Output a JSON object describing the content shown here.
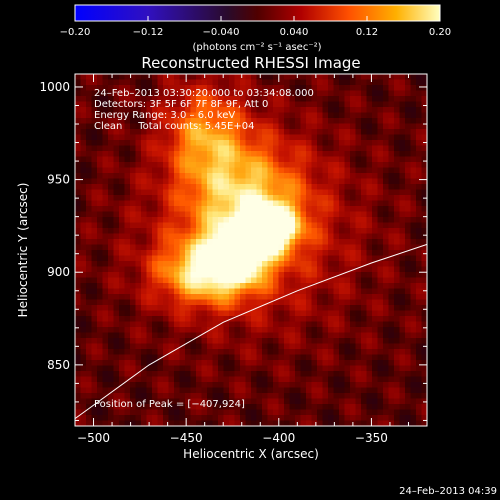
{
  "chart_data": {
    "type": "heatmap",
    "title": "Reconstructed RHESSI Image",
    "xlabel": "Heliocentric X (arcsec)",
    "ylabel": "Heliocentric Y (arcsec)",
    "xlim": [
      -510,
      -320
    ],
    "ylim": [
      817,
      1007
    ],
    "x_ticks": [
      -500,
      -450,
      -400,
      -350
    ],
    "y_ticks": [
      850,
      900,
      950,
      1000
    ],
    "x_tick_labels": [
      "−500",
      "−450",
      "−400",
      "−350"
    ],
    "y_tick_labels": [
      "850",
      "900",
      "950",
      "1000"
    ],
    "colorbar": {
      "range": [
        -0.2,
        0.2
      ],
      "ticks": [
        -0.2,
        -0.12,
        -0.04,
        0.04,
        0.12,
        0.2
      ],
      "tick_labels": [
        "−0.20",
        "−0.12",
        "−0.040",
        "0.040",
        "0.12",
        "0.20"
      ],
      "unit_label": "(photons cm⁻² s⁻¹ asec⁻²)"
    },
    "annotations": [
      "24–Feb–2013 03:30:20.000 to 03:34:08.000",
      "Detectors: 3F 5F 6F 7F 8F 9F, Att 0",
      "Energy Range: 3.0 – 6.0 keV",
      "Clean     Total counts: 5.45E+04"
    ],
    "peak_label": "Position of Peak = [−407,924]",
    "peak": [
      -407,
      924
    ],
    "limb_curve": {
      "x": [
        -510,
        -470,
        -430,
        -390,
        -350,
        -320
      ],
      "y": [
        821,
        850,
        873,
        890,
        905,
        915
      ]
    },
    "sources": [
      {
        "x": -405,
        "y": 924,
        "sx": 10,
        "sy": 8,
        "amp": 1.0
      },
      {
        "x": -422,
        "y": 910,
        "sx": 10,
        "sy": 10,
        "amp": 0.9
      },
      {
        "x": -440,
        "y": 900,
        "sx": 18,
        "sy": 12,
        "amp": 0.7
      },
      {
        "x": -418,
        "y": 940,
        "sx": 22,
        "sy": 22,
        "amp": 0.55
      },
      {
        "x": -440,
        "y": 975,
        "sx": 15,
        "sy": 18,
        "amp": 0.5
      },
      {
        "x": -415,
        "y": 920,
        "sx": 40,
        "sy": 35,
        "amp": 0.3
      }
    ]
  },
  "footer_timestamp": "24–Feb–2013 04:39"
}
